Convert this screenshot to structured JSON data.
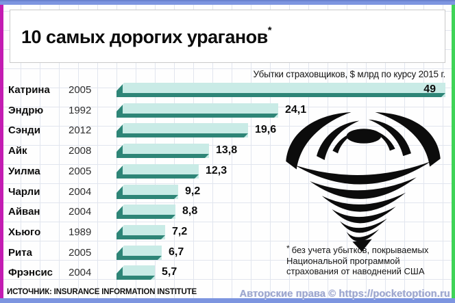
{
  "title": {
    "text": "10 самых дорогих ураганов",
    "asterisk": "*"
  },
  "subtitle": "Убытки страховщиков, $ млрд по курсу 2015 г.",
  "chart_data": {
    "type": "bar",
    "orientation": "horizontal",
    "title": "10 самых дорогих ураганов",
    "value_axis_label": "Убытки страховщиков, $ млрд по курсу 2015 г.",
    "categories": [
      "Катрина",
      "Эндрю",
      "Сэнди",
      "Айк",
      "Уилма",
      "Чарли",
      "Айван",
      "Хьюго",
      "Рита",
      "Фрэнсис"
    ],
    "years": [
      "2005",
      "1992",
      "2012",
      "2008",
      "2005",
      "2004",
      "2004",
      "1989",
      "2005",
      "2004"
    ],
    "values": [
      49,
      24.1,
      19.6,
      13.8,
      12.3,
      9.2,
      8.8,
      7.2,
      6.7,
      5.7
    ],
    "value_labels": [
      "49",
      "24,1",
      "19,6",
      "13,8",
      "12,3",
      "9,2",
      "8,8",
      "7,2",
      "6,7",
      "5,7"
    ],
    "xlim": [
      0,
      49
    ],
    "grid": true,
    "legend": false,
    "first_value_inside_bar": true
  },
  "footnote": {
    "marker": "*",
    "text": "без учета убытков, покрываемых\nНациональной программой\nстрахования от наводнений США"
  },
  "source": "ИСТОЧНИК: INSURANCE INFORMATION INSTITUTE",
  "watermark": "Авторские права © https://pocketoption.ru",
  "colors": {
    "bar_fill": "#c9ebe6",
    "bar_shadow": "#2e8577",
    "frame_top_bottom": "#7d95e0",
    "frame_left": "#c31cb2",
    "frame_right": "#3fd457",
    "grid_line": "#e1e5ee",
    "title_box_border": "#c9c9c9",
    "watermark_text": "#9aa4cd"
  }
}
